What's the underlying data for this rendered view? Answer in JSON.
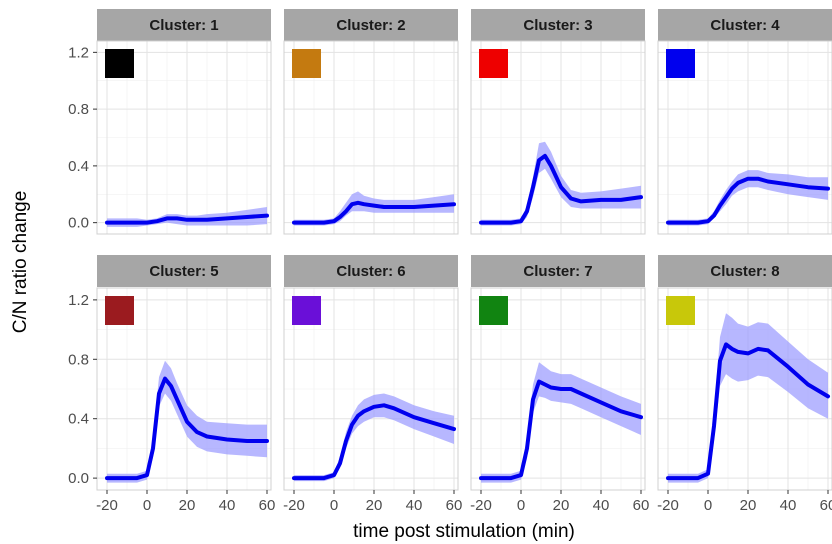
{
  "chart_data": {
    "type": "line",
    "layout": "facet-grid 2x4",
    "xlabel": "time post stimulation (min)",
    "ylabel": "C/N ratio change",
    "xlim": [
      -25,
      62
    ],
    "ylim": [
      -0.08,
      1.28
    ],
    "xticks": [
      "-20",
      "0",
      "20",
      "40",
      "60"
    ],
    "yticks": [
      "0.0",
      "0.4",
      "0.8",
      "1.2"
    ],
    "xtick_values": [
      -20,
      0,
      20,
      40,
      60
    ],
    "ytick_values": [
      0.0,
      0.4,
      0.8,
      1.2
    ],
    "grid": true,
    "line_color": "#0000ee",
    "band_color": "#9999ff",
    "strip_color": "#a6a6a6",
    "panels": [
      {
        "title": "Cluster: 1",
        "swatch": "#000000",
        "x": [
          -20,
          -15,
          -10,
          -5,
          0,
          5,
          10,
          15,
          20,
          25,
          30,
          40,
          50,
          60
        ],
        "mean": [
          0.0,
          0.0,
          0.0,
          0.0,
          0.0,
          0.01,
          0.03,
          0.03,
          0.02,
          0.02,
          0.02,
          0.03,
          0.04,
          0.05
        ],
        "lower": [
          -0.03,
          -0.03,
          -0.03,
          -0.03,
          -0.02,
          -0.01,
          0.0,
          -0.01,
          -0.02,
          -0.02,
          -0.02,
          -0.02,
          -0.02,
          -0.01
        ],
        "upper": [
          0.03,
          0.03,
          0.03,
          0.03,
          0.02,
          0.03,
          0.06,
          0.06,
          0.05,
          0.05,
          0.06,
          0.07,
          0.09,
          0.11
        ]
      },
      {
        "title": "Cluster: 2",
        "swatch": "#c47a10",
        "x": [
          -20,
          -15,
          -10,
          -5,
          0,
          3,
          6,
          9,
          12,
          15,
          20,
          25,
          30,
          40,
          50,
          60
        ],
        "mean": [
          0.0,
          0.0,
          0.0,
          0.0,
          0.01,
          0.04,
          0.08,
          0.13,
          0.14,
          0.13,
          0.12,
          0.11,
          0.11,
          0.11,
          0.12,
          0.13
        ],
        "lower": [
          -0.02,
          -0.02,
          -0.02,
          -0.02,
          -0.01,
          0.01,
          0.05,
          0.08,
          0.08,
          0.08,
          0.07,
          0.07,
          0.07,
          0.07,
          0.07,
          0.07
        ],
        "upper": [
          0.02,
          0.02,
          0.02,
          0.02,
          0.03,
          0.08,
          0.14,
          0.2,
          0.22,
          0.19,
          0.17,
          0.16,
          0.16,
          0.16,
          0.18,
          0.2
        ]
      },
      {
        "title": "Cluster: 3",
        "swatch": "#ee0000",
        "x": [
          -20,
          -15,
          -10,
          -5,
          0,
          3,
          6,
          9,
          12,
          15,
          20,
          25,
          30,
          40,
          50,
          60
        ],
        "mean": [
          0.0,
          0.0,
          0.0,
          0.0,
          0.01,
          0.08,
          0.25,
          0.44,
          0.47,
          0.4,
          0.25,
          0.17,
          0.15,
          0.16,
          0.16,
          0.18
        ],
        "lower": [
          -0.02,
          -0.02,
          -0.02,
          -0.02,
          -0.01,
          0.04,
          0.18,
          0.35,
          0.38,
          0.31,
          0.18,
          0.11,
          0.1,
          0.1,
          0.1,
          0.1
        ],
        "upper": [
          0.02,
          0.02,
          0.02,
          0.02,
          0.03,
          0.12,
          0.32,
          0.56,
          0.57,
          0.5,
          0.33,
          0.23,
          0.21,
          0.22,
          0.24,
          0.26
        ]
      },
      {
        "title": "Cluster: 4",
        "swatch": "#0000ee",
        "x": [
          -20,
          -15,
          -10,
          -5,
          0,
          3,
          6,
          9,
          12,
          15,
          20,
          25,
          30,
          40,
          50,
          60
        ],
        "mean": [
          0.0,
          0.0,
          0.0,
          0.0,
          0.01,
          0.05,
          0.12,
          0.18,
          0.24,
          0.28,
          0.31,
          0.31,
          0.29,
          0.27,
          0.25,
          0.24
        ],
        "lower": [
          -0.02,
          -0.02,
          -0.02,
          -0.02,
          -0.01,
          0.03,
          0.08,
          0.13,
          0.19,
          0.22,
          0.25,
          0.25,
          0.23,
          0.2,
          0.18,
          0.16
        ],
        "upper": [
          0.02,
          0.02,
          0.02,
          0.02,
          0.03,
          0.08,
          0.16,
          0.23,
          0.29,
          0.34,
          0.37,
          0.37,
          0.35,
          0.34,
          0.32,
          0.32
        ]
      },
      {
        "title": "Cluster: 5",
        "swatch": "#9b1b1f",
        "x": [
          -20,
          -15,
          -10,
          -5,
          0,
          3,
          6,
          9,
          12,
          15,
          20,
          25,
          30,
          40,
          50,
          60
        ],
        "mean": [
          0.0,
          0.0,
          0.0,
          0.0,
          0.02,
          0.2,
          0.57,
          0.67,
          0.62,
          0.53,
          0.38,
          0.31,
          0.28,
          0.26,
          0.25,
          0.25
        ],
        "lower": [
          -0.03,
          -0.03,
          -0.03,
          -0.03,
          -0.01,
          0.14,
          0.48,
          0.57,
          0.52,
          0.43,
          0.28,
          0.21,
          0.18,
          0.16,
          0.15,
          0.14
        ],
        "upper": [
          0.03,
          0.03,
          0.03,
          0.03,
          0.05,
          0.27,
          0.68,
          0.79,
          0.74,
          0.64,
          0.49,
          0.42,
          0.38,
          0.37,
          0.36,
          0.36
        ]
      },
      {
        "title": "Cluster: 6",
        "swatch": "#6a0fd8",
        "x": [
          -20,
          -15,
          -10,
          -5,
          0,
          3,
          6,
          9,
          12,
          15,
          20,
          25,
          30,
          40,
          50,
          60
        ],
        "mean": [
          0.0,
          0.0,
          0.0,
          0.0,
          0.02,
          0.1,
          0.25,
          0.36,
          0.42,
          0.45,
          0.48,
          0.49,
          0.47,
          0.41,
          0.37,
          0.33
        ],
        "lower": [
          -0.02,
          -0.02,
          -0.02,
          -0.02,
          0.0,
          0.07,
          0.2,
          0.3,
          0.35,
          0.38,
          0.41,
          0.41,
          0.39,
          0.33,
          0.28,
          0.23
        ],
        "upper": [
          0.02,
          0.02,
          0.02,
          0.02,
          0.04,
          0.14,
          0.31,
          0.42,
          0.49,
          0.53,
          0.56,
          0.57,
          0.55,
          0.49,
          0.45,
          0.42
        ]
      },
      {
        "title": "Cluster: 7",
        "swatch": "#118411",
        "x": [
          -20,
          -15,
          -10,
          -5,
          0,
          3,
          6,
          9,
          12,
          15,
          20,
          25,
          30,
          40,
          50,
          60
        ],
        "mean": [
          0.0,
          0.0,
          0.0,
          0.0,
          0.02,
          0.2,
          0.53,
          0.65,
          0.63,
          0.61,
          0.6,
          0.6,
          0.57,
          0.51,
          0.45,
          0.41
        ],
        "lower": [
          -0.03,
          -0.03,
          -0.03,
          -0.03,
          -0.01,
          0.13,
          0.44,
          0.55,
          0.54,
          0.52,
          0.51,
          0.5,
          0.47,
          0.41,
          0.35,
          0.29
        ],
        "upper": [
          0.03,
          0.03,
          0.03,
          0.03,
          0.05,
          0.27,
          0.63,
          0.78,
          0.75,
          0.72,
          0.7,
          0.7,
          0.67,
          0.61,
          0.55,
          0.5
        ]
      },
      {
        "title": "Cluster: 8",
        "swatch": "#c8c80a",
        "x": [
          -20,
          -15,
          -10,
          -5,
          0,
          3,
          6,
          9,
          12,
          15,
          20,
          25,
          30,
          40,
          50,
          60
        ],
        "mean": [
          0.0,
          0.0,
          0.0,
          0.0,
          0.03,
          0.35,
          0.79,
          0.9,
          0.87,
          0.85,
          0.84,
          0.87,
          0.86,
          0.75,
          0.63,
          0.55
        ],
        "lower": [
          -0.03,
          -0.03,
          -0.03,
          -0.03,
          0.0,
          0.25,
          0.62,
          0.7,
          0.67,
          0.65,
          0.66,
          0.69,
          0.68,
          0.58,
          0.47,
          0.4
        ],
        "upper": [
          0.03,
          0.03,
          0.03,
          0.03,
          0.06,
          0.45,
          0.95,
          1.11,
          1.08,
          1.04,
          1.02,
          1.05,
          1.04,
          0.92,
          0.8,
          0.71
        ]
      }
    ]
  }
}
